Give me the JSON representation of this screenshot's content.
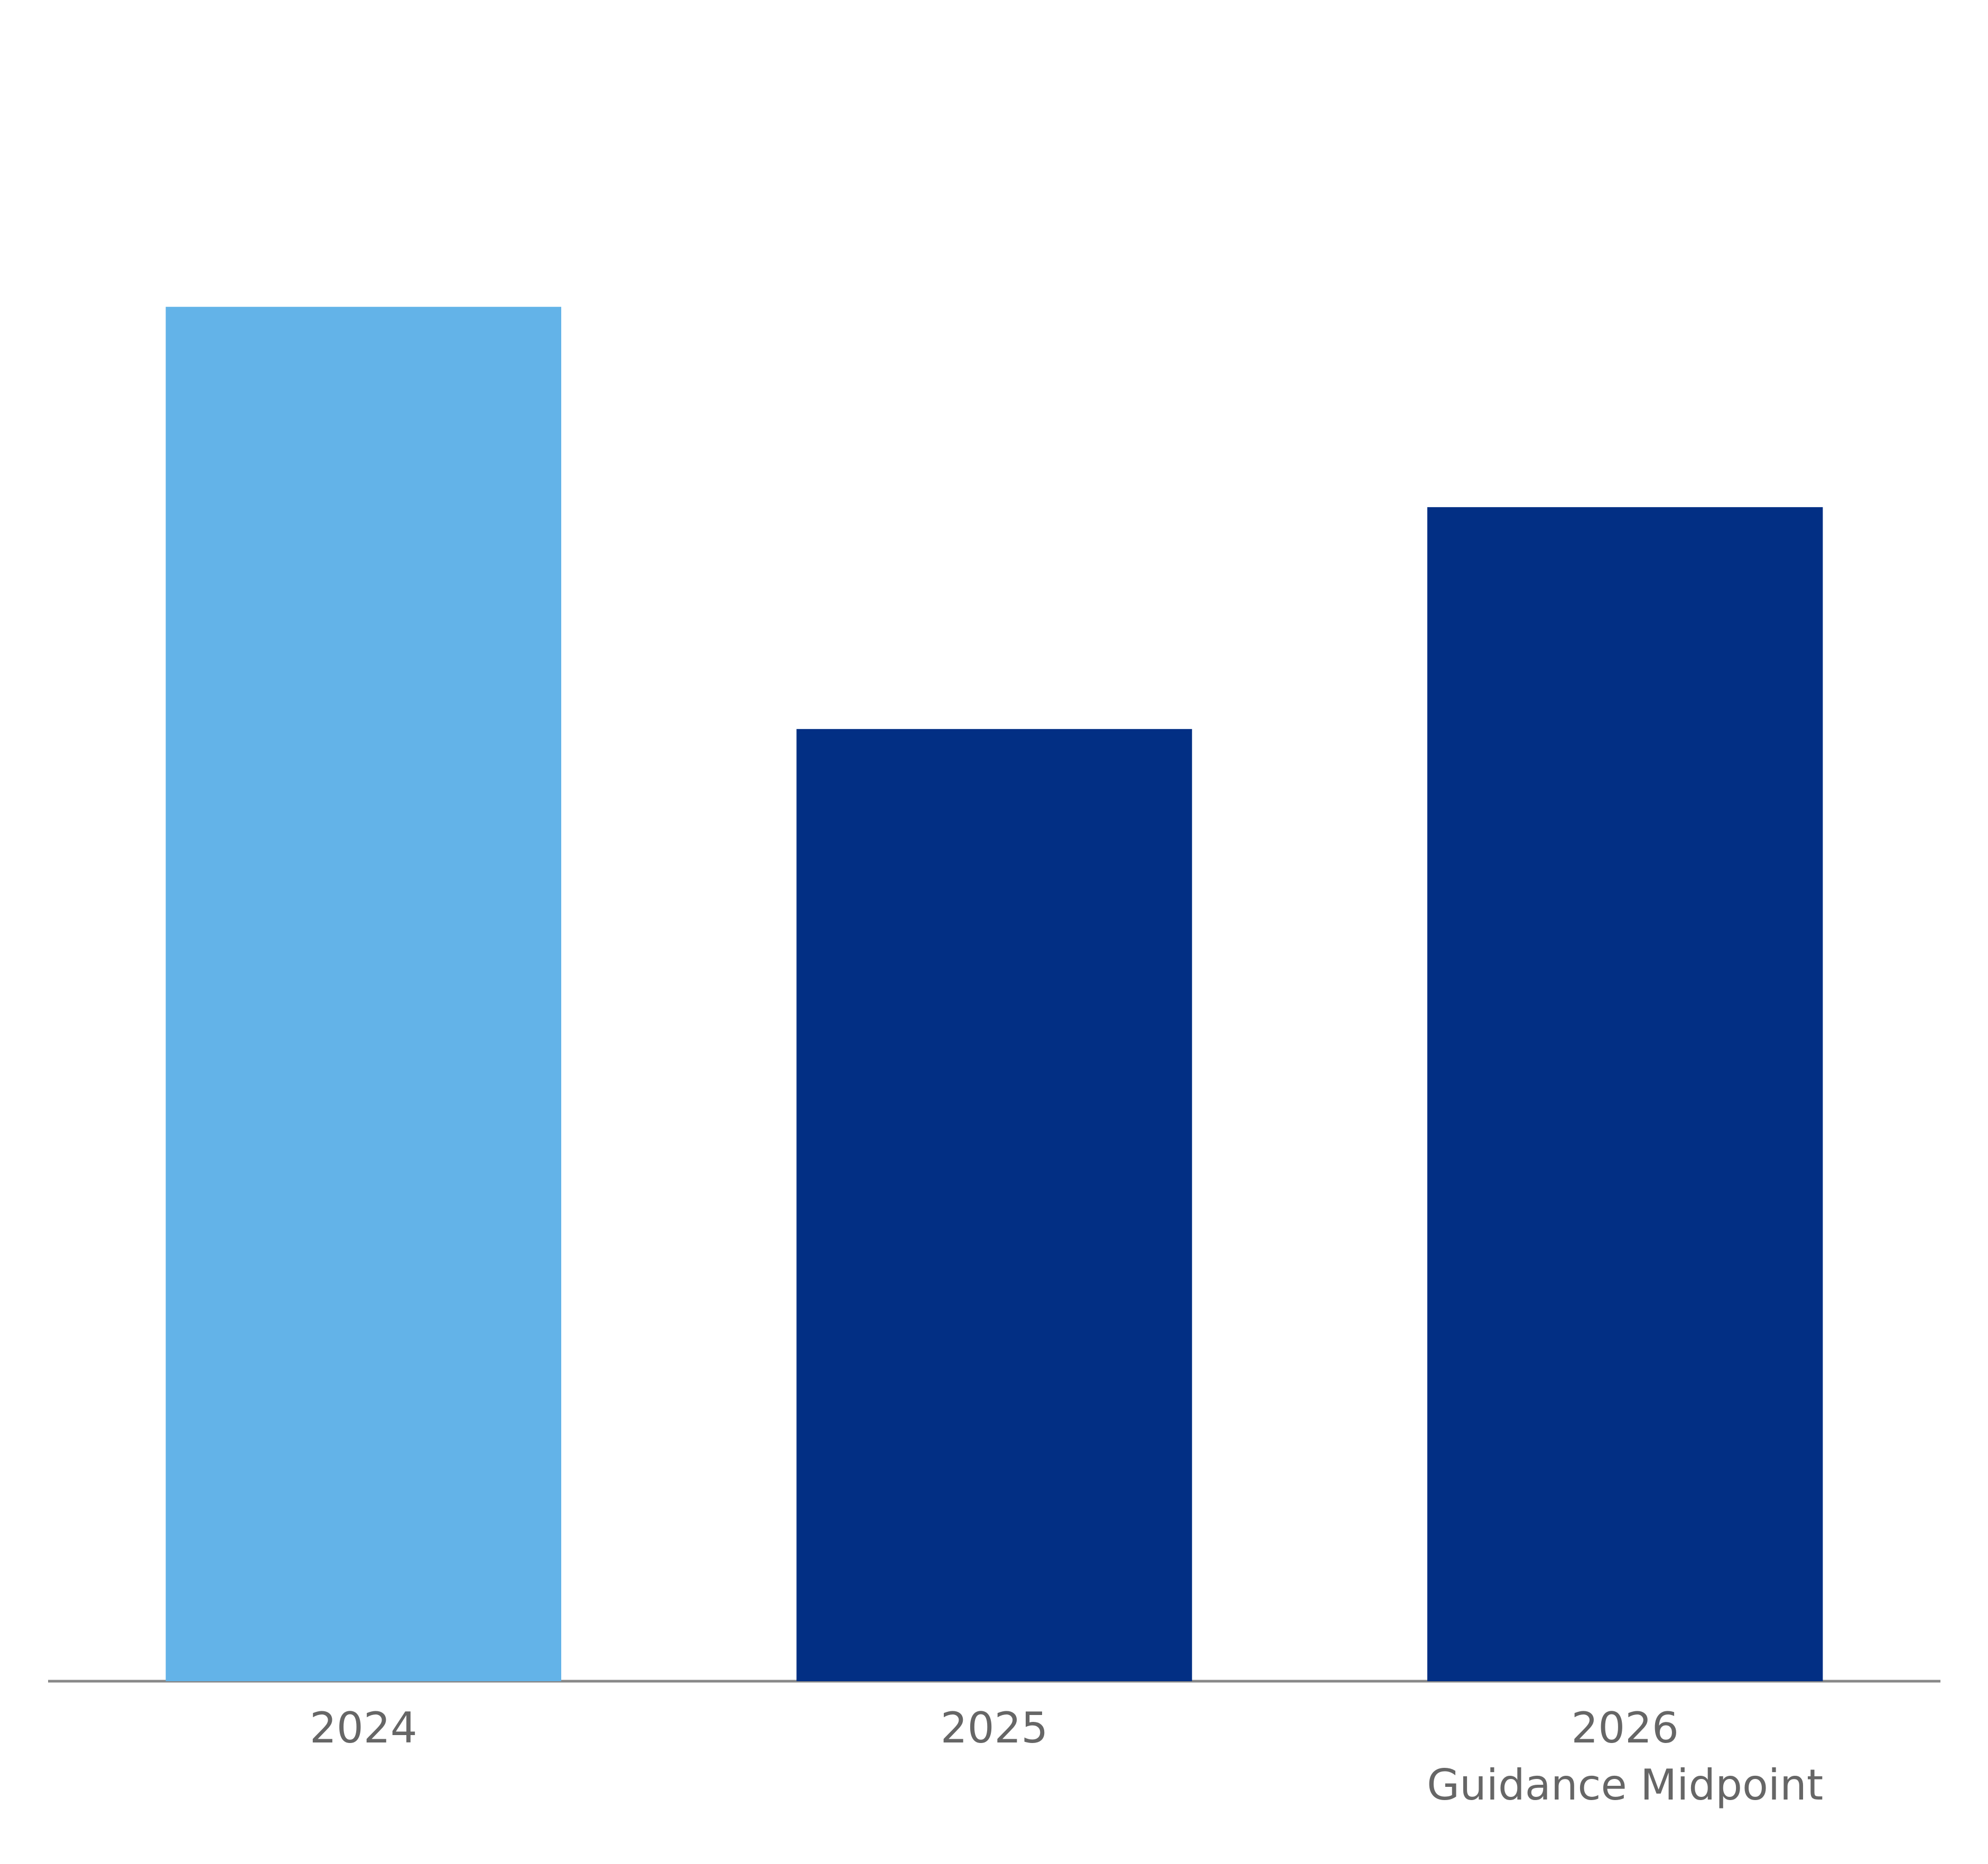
{
  "chart_data": {
    "type": "bar",
    "categories": [
      [
        "2024"
      ],
      [
        "2025"
      ],
      [
        "2026",
        "Guidance Midpoint"
      ]
    ],
    "values": [
      1084,
      751,
      926
    ],
    "colors": [
      "#63b3e8",
      "#022f84",
      "#022f84"
    ],
    "ylim": [
      0,
      1326
    ]
  }
}
